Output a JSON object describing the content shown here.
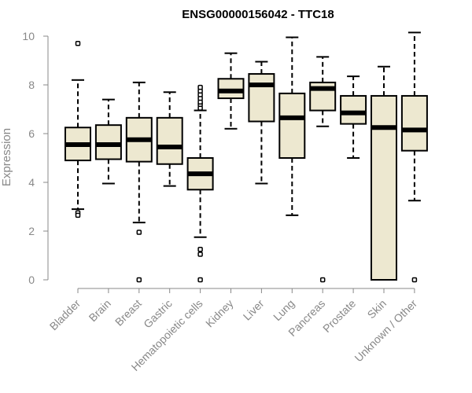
{
  "chart_data": {
    "type": "box",
    "title": "ENSG00000156042 - TTC18",
    "xlabel": "",
    "ylabel": "Expression",
    "ylim": [
      0,
      10.3
    ],
    "yticks": [
      0,
      2,
      4,
      6,
      8,
      10
    ],
    "grid": false,
    "colors": {
      "box_fill": "#ede8d0",
      "stroke": "#000000",
      "axis": "#888888"
    },
    "categories": [
      "Bladder",
      "Brain",
      "Breast",
      "Gastric",
      "Hematopoietic cells",
      "Kidney",
      "Liver",
      "Lung",
      "Pancreas",
      "Prostate",
      "Skin",
      "Unknown / Other"
    ],
    "boxes": [
      {
        "whisker_low": 2.9,
        "q1": 4.9,
        "median": 5.55,
        "q3": 6.25,
        "whisker_high": 8.2,
        "outliers": [
          9.7,
          2.75,
          2.65
        ]
      },
      {
        "whisker_low": 3.95,
        "q1": 4.95,
        "median": 5.55,
        "q3": 6.35,
        "whisker_high": 7.4,
        "outliers": []
      },
      {
        "whisker_low": 2.35,
        "q1": 4.85,
        "median": 5.75,
        "q3": 6.65,
        "whisker_high": 8.1,
        "outliers": [
          1.95,
          0
        ]
      },
      {
        "whisker_low": 3.85,
        "q1": 4.75,
        "median": 5.45,
        "q3": 6.65,
        "whisker_high": 7.7,
        "outliers": []
      },
      {
        "whisker_low": 1.75,
        "q1": 3.7,
        "median": 4.35,
        "q3": 5.0,
        "whisker_high": 6.95,
        "outliers": [
          7.05,
          7.2,
          7.3,
          7.45,
          7.6,
          7.75,
          7.9,
          1.25,
          1.05,
          0
        ]
      },
      {
        "whisker_low": 6.2,
        "q1": 7.45,
        "median": 7.75,
        "q3": 8.25,
        "whisker_high": 9.3,
        "outliers": []
      },
      {
        "whisker_low": 3.95,
        "q1": 6.5,
        "median": 8.0,
        "q3": 8.45,
        "whisker_high": 8.95,
        "outliers": []
      },
      {
        "whisker_low": 2.65,
        "q1": 5.0,
        "median": 6.65,
        "q3": 7.65,
        "whisker_high": 9.95,
        "outliers": []
      },
      {
        "whisker_low": 6.3,
        "q1": 6.95,
        "median": 7.85,
        "q3": 8.1,
        "whisker_high": 9.15,
        "outliers": [
          0
        ]
      },
      {
        "whisker_low": 5.0,
        "q1": 6.4,
        "median": 6.85,
        "q3": 7.55,
        "whisker_high": 8.35,
        "outliers": []
      },
      {
        "whisker_low": 0,
        "q1": 0,
        "median": 6.25,
        "q3": 7.55,
        "whisker_high": 8.75,
        "outliers": []
      },
      {
        "whisker_low": 3.25,
        "q1": 5.3,
        "median": 6.15,
        "q3": 7.55,
        "whisker_high": 10.15,
        "outliers": [
          0
        ]
      }
    ]
  }
}
